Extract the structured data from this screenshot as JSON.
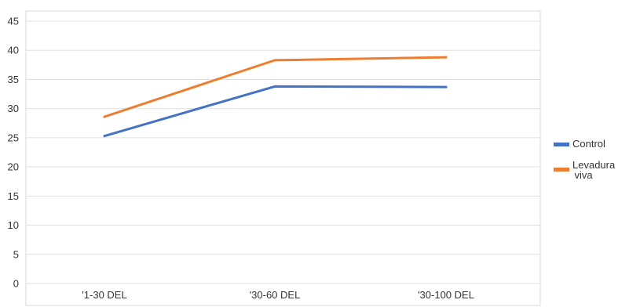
{
  "chart_data": {
    "type": "line",
    "categories": [
      "'1-30 DEL",
      "'30-60 DEL",
      "'30-100 DEL"
    ],
    "series": [
      {
        "name": "Control",
        "color": "#4472c4",
        "values": [
          25.3,
          33.8,
          33.7
        ]
      },
      {
        "name": "Levadura viva",
        "color": "#ed7d31",
        "values": [
          28.6,
          38.3,
          38.8
        ]
      }
    ],
    "ylim": [
      0,
      45
    ],
    "yticks": [
      0,
      5,
      10,
      15,
      20,
      25,
      30,
      35,
      40,
      45
    ],
    "grid": true,
    "legend_position": "right",
    "legend": [
      {
        "series": 0,
        "lines": [
          "Control"
        ]
      },
      {
        "series": 1,
        "lines": [
          "Levadura",
          "viva"
        ]
      }
    ]
  }
}
